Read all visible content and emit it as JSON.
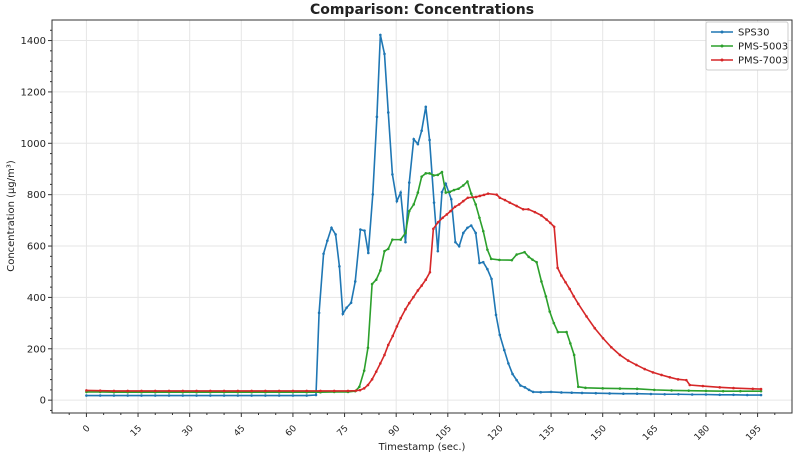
{
  "chart_data": {
    "type": "line",
    "title": "Comparison: Concentrations",
    "xlabel": "Timestamp (sec.)",
    "ylabel": "Concentration (µg/m³)",
    "xlim": [
      -10,
      205
    ],
    "ylim": [
      -50,
      1480
    ],
    "xticks": [
      0,
      15,
      30,
      45,
      60,
      75,
      90,
      105,
      120,
      135,
      150,
      165,
      180,
      195
    ],
    "yticks": [
      0,
      200,
      400,
      600,
      800,
      1000,
      1200,
      1400
    ],
    "grid": true,
    "legend_position": "top-right",
    "series": [
      {
        "name": "SPS30",
        "color": "#1f77b4",
        "points": [
          [
            0,
            18
          ],
          [
            4,
            18
          ],
          [
            8,
            18
          ],
          [
            12,
            18
          ],
          [
            16,
            18
          ],
          [
            20,
            18
          ],
          [
            24,
            18
          ],
          [
            28,
            18
          ],
          [
            32,
            18
          ],
          [
            36,
            18
          ],
          [
            40,
            18
          ],
          [
            44,
            18
          ],
          [
            48,
            18
          ],
          [
            52,
            18
          ],
          [
            56,
            18
          ],
          [
            60,
            18
          ],
          [
            64,
            18
          ],
          [
            66.7,
            20
          ],
          [
            67.6,
            340
          ],
          [
            68.9,
            570
          ],
          [
            70.0,
            621
          ],
          [
            71.2,
            671
          ],
          [
            72.4,
            645
          ],
          [
            73.5,
            521
          ],
          [
            74.5,
            336
          ],
          [
            75.6,
            360
          ],
          [
            76.9,
            379
          ],
          [
            78.1,
            462
          ],
          [
            79.6,
            664
          ],
          [
            80.8,
            660
          ],
          [
            81.9,
            573
          ],
          [
            83.2,
            801
          ],
          [
            84.4,
            1103
          ],
          [
            85.4,
            1422
          ],
          [
            86.6,
            1348
          ],
          [
            87.7,
            1120
          ],
          [
            88.9,
            879
          ],
          [
            90.2,
            775
          ],
          [
            91.3,
            808
          ],
          [
            92.7,
            615
          ],
          [
            93.8,
            847
          ],
          [
            95.1,
            1016
          ],
          [
            96.3,
            997
          ],
          [
            97.4,
            1049
          ],
          [
            98.6,
            1142
          ],
          [
            99.7,
            1013
          ],
          [
            101.0,
            769
          ],
          [
            102.1,
            580
          ],
          [
            103.3,
            810
          ],
          [
            104.4,
            843
          ],
          [
            106.0,
            782
          ],
          [
            107.2,
            615
          ],
          [
            108.3,
            599
          ],
          [
            109.5,
            651
          ],
          [
            110.7,
            671
          ],
          [
            111.8,
            680
          ],
          [
            113.1,
            651
          ],
          [
            114.2,
            534
          ],
          [
            115.3,
            537
          ],
          [
            116.5,
            510
          ],
          [
            117.7,
            472
          ],
          [
            119.0,
            332
          ],
          [
            120.1,
            254
          ],
          [
            121.4,
            195
          ],
          [
            122.6,
            143
          ],
          [
            123.8,
            102
          ],
          [
            125.0,
            78
          ],
          [
            126.1,
            57
          ],
          [
            127.4,
            50
          ],
          [
            128.6,
            40
          ],
          [
            129.8,
            32
          ],
          [
            132,
            31
          ],
          [
            135,
            32
          ],
          [
            138,
            30
          ],
          [
            141,
            29
          ],
          [
            144,
            28
          ],
          [
            148,
            27
          ],
          [
            152,
            26
          ],
          [
            156,
            25
          ],
          [
            160,
            25
          ],
          [
            164,
            24
          ],
          [
            168,
            23
          ],
          [
            172,
            23
          ],
          [
            176,
            22
          ],
          [
            180,
            22
          ],
          [
            184,
            21
          ],
          [
            188,
            21
          ],
          [
            192,
            20
          ],
          [
            196,
            20
          ]
        ]
      },
      {
        "name": "PMS-5003",
        "color": "#2ca02c",
        "points": [
          [
            0,
            32
          ],
          [
            4,
            32
          ],
          [
            8,
            31
          ],
          [
            12,
            31
          ],
          [
            16,
            31
          ],
          [
            20,
            31
          ],
          [
            24,
            31
          ],
          [
            28,
            31
          ],
          [
            32,
            31
          ],
          [
            36,
            31
          ],
          [
            40,
            31
          ],
          [
            44,
            31
          ],
          [
            48,
            31
          ],
          [
            52,
            31
          ],
          [
            56,
            31
          ],
          [
            60,
            31
          ],
          [
            64,
            31
          ],
          [
            68,
            31
          ],
          [
            72,
            32
          ],
          [
            76,
            32
          ],
          [
            78.1,
            35
          ],
          [
            79.3,
            52
          ],
          [
            80.7,
            115
          ],
          [
            81.8,
            204
          ],
          [
            83.0,
            452
          ],
          [
            84.2,
            469
          ],
          [
            85.4,
            505
          ],
          [
            86.6,
            580
          ],
          [
            87.7,
            589
          ],
          [
            88.9,
            625
          ],
          [
            91.3,
            625
          ],
          [
            92.7,
            651
          ],
          [
            93.8,
            736
          ],
          [
            95.1,
            762
          ],
          [
            96.3,
            808
          ],
          [
            97.4,
            870
          ],
          [
            98.6,
            883
          ],
          [
            99.7,
            883
          ],
          [
            100.9,
            875
          ],
          [
            102.1,
            877
          ],
          [
            103.3,
            888
          ],
          [
            104.4,
            808
          ],
          [
            105.6,
            811
          ],
          [
            106.8,
            818
          ],
          [
            108.1,
            823
          ],
          [
            109.5,
            836
          ],
          [
            110.7,
            851
          ],
          [
            111.8,
            804
          ],
          [
            113.1,
            762
          ],
          [
            114.2,
            710
          ],
          [
            115.3,
            658
          ],
          [
            116.5,
            586
          ],
          [
            117.6,
            550
          ],
          [
            120,
            546
          ],
          [
            123.6,
            545
          ],
          [
            125.0,
            567
          ],
          [
            127.3,
            576
          ],
          [
            128.5,
            558
          ],
          [
            129.6,
            547
          ],
          [
            130.8,
            537
          ],
          [
            132.2,
            462
          ],
          [
            133.5,
            404
          ],
          [
            134.6,
            345
          ],
          [
            135.8,
            300
          ],
          [
            137.0,
            265
          ],
          [
            139.5,
            265
          ],
          [
            140.6,
            221
          ],
          [
            141.7,
            176
          ],
          [
            142.9,
            52
          ],
          [
            145,
            48
          ],
          [
            150,
            46
          ],
          [
            155,
            45
          ],
          [
            160,
            44
          ],
          [
            165,
            40
          ],
          [
            170,
            38
          ],
          [
            175,
            37
          ],
          [
            180,
            36
          ],
          [
            185,
            35
          ],
          [
            190,
            35
          ],
          [
            196,
            35
          ]
        ]
      },
      {
        "name": "PMS-7003",
        "color": "#d62728",
        "points": [
          [
            0,
            38
          ],
          [
            4,
            37
          ],
          [
            8,
            36
          ],
          [
            12,
            36
          ],
          [
            16,
            36
          ],
          [
            20,
            36
          ],
          [
            24,
            36
          ],
          [
            28,
            36
          ],
          [
            32,
            36
          ],
          [
            36,
            36
          ],
          [
            40,
            36
          ],
          [
            44,
            36
          ],
          [
            48,
            36
          ],
          [
            52,
            36
          ],
          [
            56,
            36
          ],
          [
            60,
            36
          ],
          [
            64,
            36
          ],
          [
            68,
            36
          ],
          [
            72,
            36
          ],
          [
            76,
            36
          ],
          [
            78.3,
            37
          ],
          [
            79.5,
            39
          ],
          [
            80.7,
            46
          ],
          [
            81.8,
            59
          ],
          [
            83.0,
            81
          ],
          [
            84.2,
            111
          ],
          [
            85.4,
            143
          ],
          [
            86.6,
            176
          ],
          [
            87.7,
            215
          ],
          [
            89.0,
            250
          ],
          [
            90.2,
            287
          ],
          [
            91.3,
            319
          ],
          [
            92.7,
            354
          ],
          [
            93.8,
            378
          ],
          [
            95.0,
            401
          ],
          [
            96.3,
            427
          ],
          [
            97.4,
            446
          ],
          [
            98.6,
            469
          ],
          [
            99.8,
            498
          ],
          [
            100.8,
            667
          ],
          [
            102.2,
            693
          ],
          [
            103.5,
            710
          ],
          [
            104.7,
            723
          ],
          [
            105.8,
            736
          ],
          [
            107.1,
            753
          ],
          [
            108.3,
            762
          ],
          [
            109.5,
            775
          ],
          [
            110.8,
            788
          ],
          [
            113.2,
            791
          ],
          [
            114.3,
            795
          ],
          [
            115.5,
            799
          ],
          [
            116.7,
            804
          ],
          [
            119.2,
            800
          ],
          [
            120.1,
            788
          ],
          [
            121.6,
            779
          ],
          [
            123.0,
            769
          ],
          [
            125.0,
            756
          ],
          [
            126.9,
            743
          ],
          [
            128.4,
            743
          ],
          [
            130.3,
            732
          ],
          [
            132.2,
            719
          ],
          [
            133.7,
            703
          ],
          [
            134.8,
            690
          ],
          [
            135.9,
            675
          ],
          [
            136.9,
            515
          ],
          [
            138.0,
            485
          ],
          [
            139.2,
            459
          ],
          [
            140.4,
            433
          ],
          [
            141.6,
            404
          ],
          [
            142.9,
            375
          ],
          [
            145.3,
            326
          ],
          [
            147.7,
            280
          ],
          [
            150.1,
            241
          ],
          [
            152.5,
            206
          ],
          [
            155.0,
            176
          ],
          [
            157.4,
            154
          ],
          [
            159.8,
            137
          ],
          [
            162.2,
            121
          ],
          [
            164.6,
            108
          ],
          [
            167.1,
            98
          ],
          [
            169.5,
            89
          ],
          [
            171.9,
            81
          ],
          [
            174.3,
            78
          ],
          [
            175.3,
            59
          ],
          [
            179.1,
            55
          ],
          [
            184.0,
            50
          ],
          [
            188,
            47
          ],
          [
            193.6,
            44
          ],
          [
            196,
            43
          ]
        ]
      }
    ]
  }
}
